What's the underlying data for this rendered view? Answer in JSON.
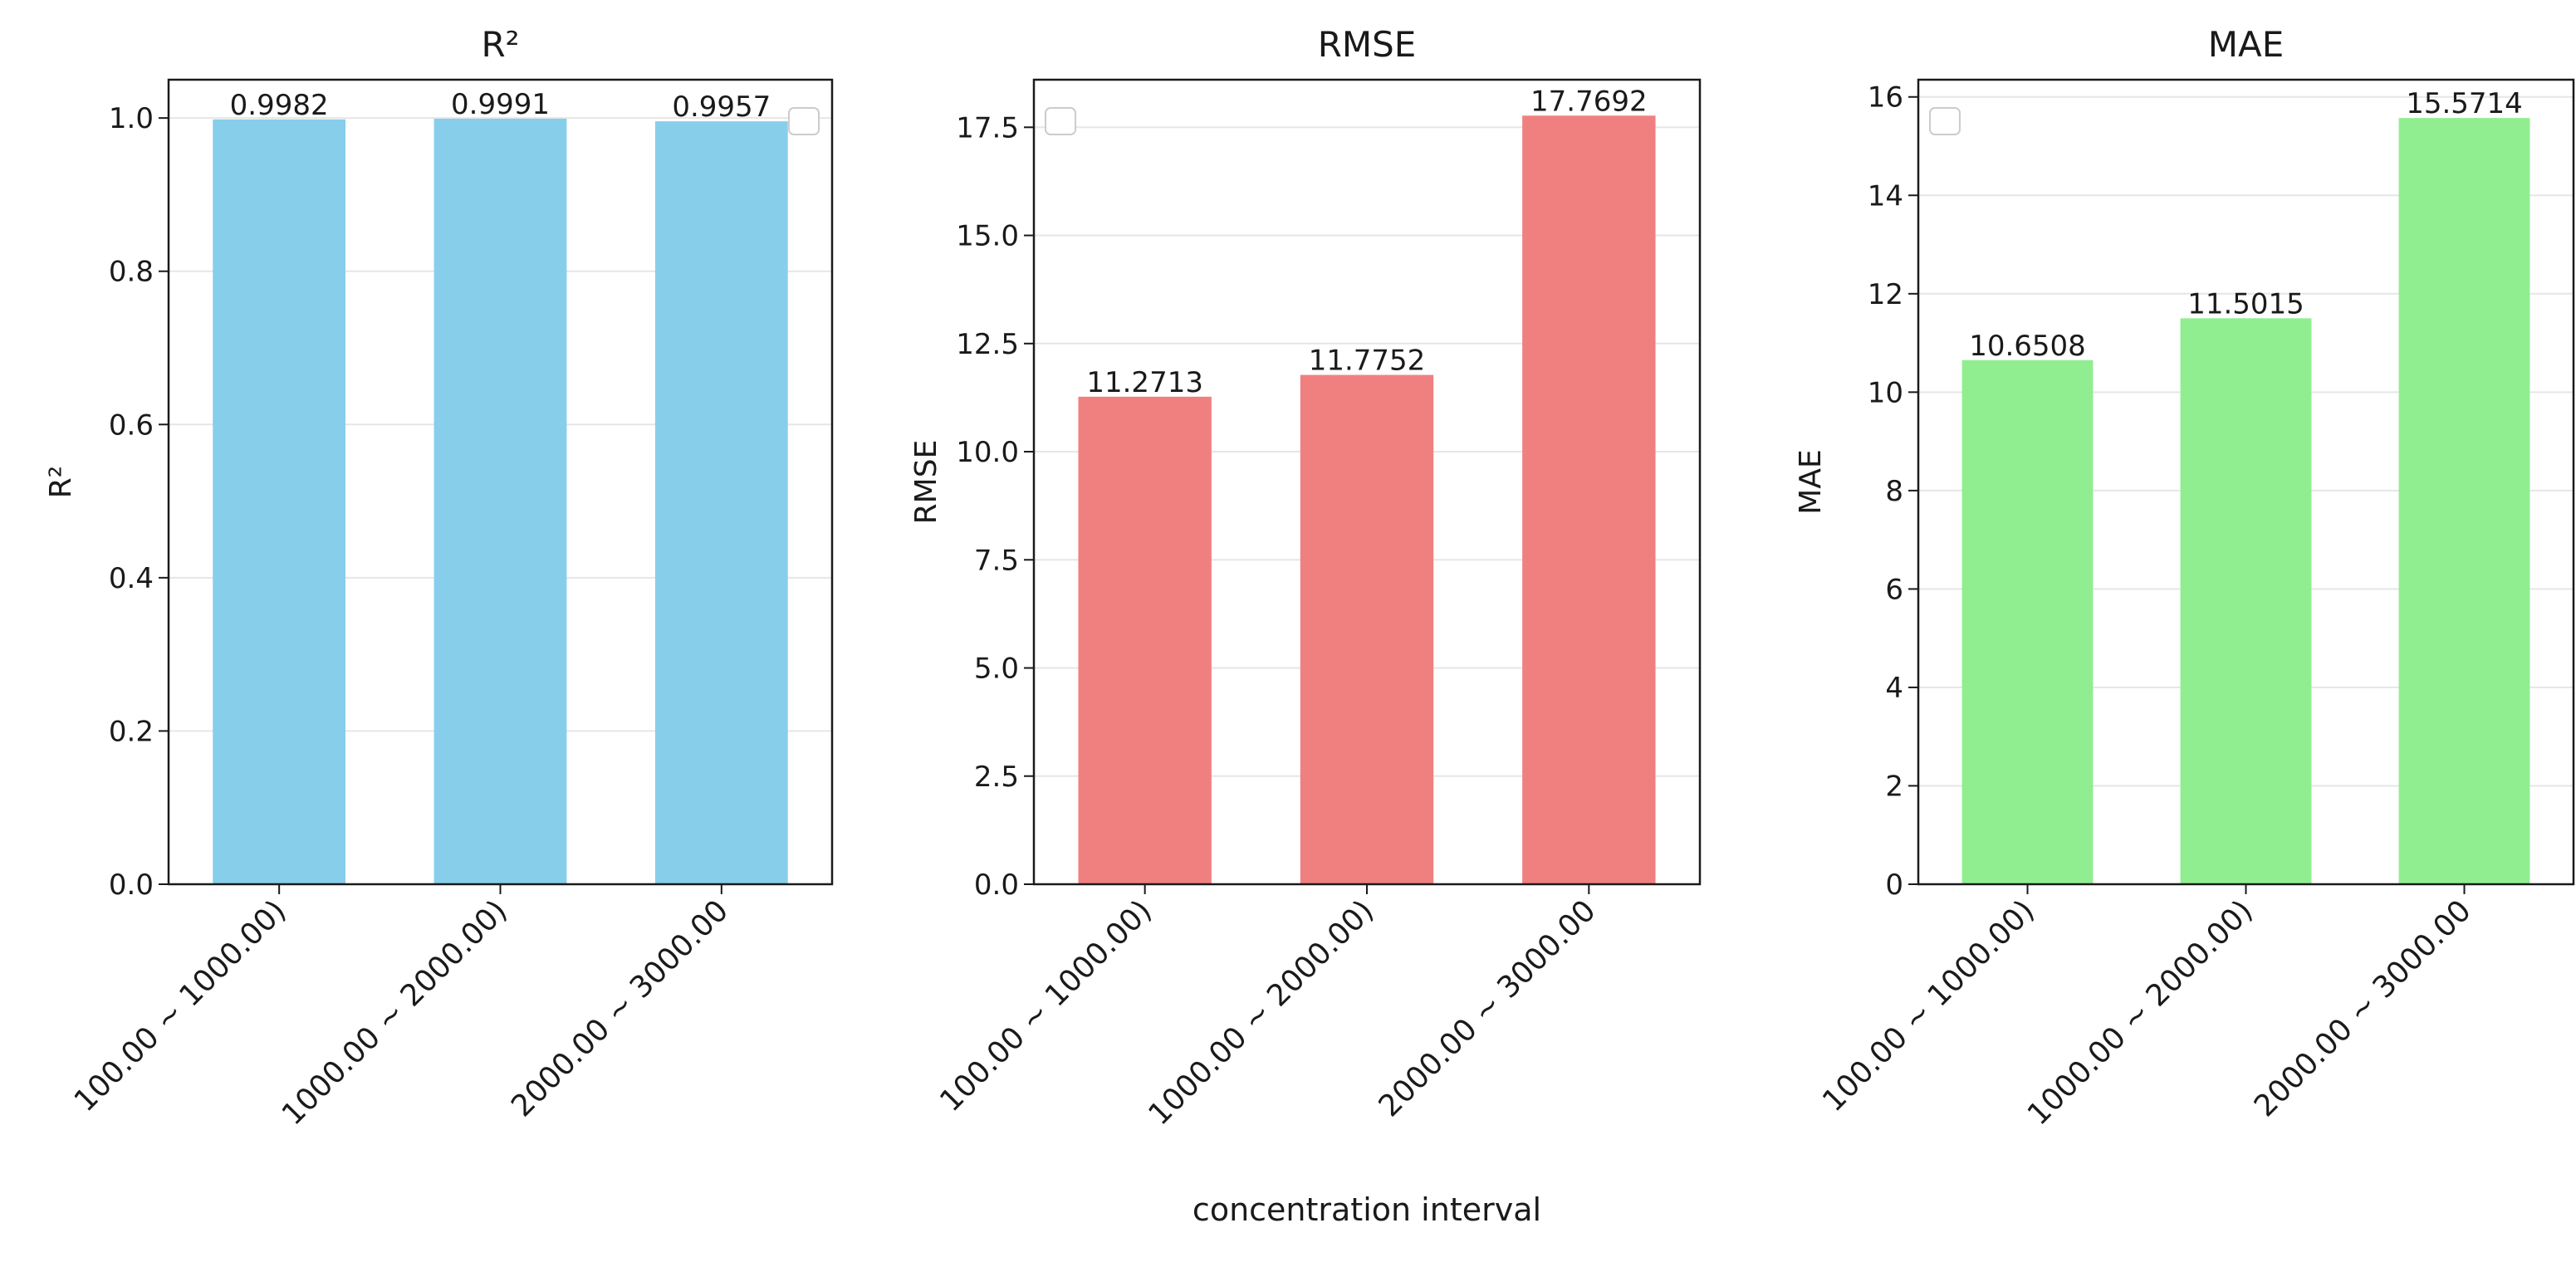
{
  "figure": {
    "xlabel": "concentration interval"
  },
  "chart_data": [
    {
      "type": "bar",
      "title": "R²",
      "ylabel": "R²",
      "categories": [
        "100.00 ~ 1000.00)",
        "1000.00 ~ 2000.00)",
        "2000.00 ~ 3000.00"
      ],
      "values": [
        0.9982,
        0.9991,
        0.9957
      ],
      "value_labels": [
        "0.9982",
        "0.9991",
        "0.9957"
      ],
      "ylim": [
        0,
        1.05
      ],
      "yticks": [
        0.0,
        0.2,
        0.4,
        0.6,
        0.8,
        1.0
      ],
      "ytick_labels": [
        "0.0",
        "0.2",
        "0.4",
        "0.6",
        "0.8",
        "1.0"
      ],
      "color": "#87ceeb",
      "grid": "y",
      "legend": "top-right (empty)"
    },
    {
      "type": "bar",
      "title": "RMSE",
      "ylabel": "RMSE",
      "categories": [
        "100.00 ~ 1000.00)",
        "1000.00 ~ 2000.00)",
        "2000.00 ~ 3000.00"
      ],
      "values": [
        11.2713,
        11.7752,
        17.7692
      ],
      "value_labels": [
        "11.2713",
        "11.7752",
        "17.7692"
      ],
      "ylim": [
        0,
        18.6
      ],
      "yticks": [
        0.0,
        2.5,
        5.0,
        7.5,
        10.0,
        12.5,
        15.0,
        17.5
      ],
      "ytick_labels": [
        "0.0",
        "2.5",
        "5.0",
        "7.5",
        "10.0",
        "12.5",
        "15.0",
        "17.5"
      ],
      "color": "#f08080",
      "grid": "y",
      "legend": "top-left (empty)"
    },
    {
      "type": "bar",
      "title": "MAE",
      "ylabel": "MAE",
      "categories": [
        "100.00 ~ 1000.00)",
        "1000.00 ~ 2000.00)",
        "2000.00 ~ 3000.00"
      ],
      "values": [
        10.6508,
        11.5015,
        15.5714
      ],
      "value_labels": [
        "10.6508",
        "11.5015",
        "15.5714"
      ],
      "ylim": [
        0,
        16.35
      ],
      "yticks": [
        0,
        2,
        4,
        6,
        8,
        10,
        12,
        14,
        16
      ],
      "ytick_labels": [
        "0",
        "2",
        "4",
        "6",
        "8",
        "10",
        "12",
        "14",
        "16"
      ],
      "color": "#90ee90",
      "grid": "y",
      "legend": "top-left (empty)"
    }
  ]
}
